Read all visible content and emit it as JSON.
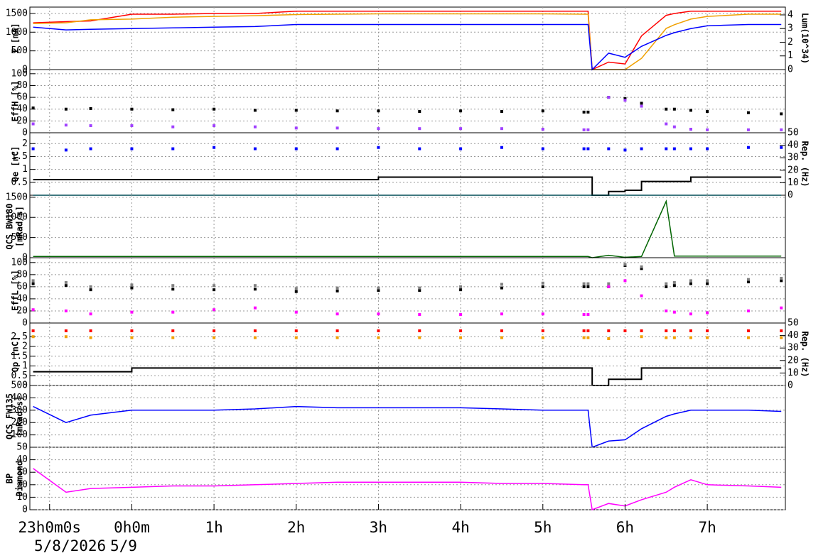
{
  "chart_data": [
    {
      "type": "line",
      "ylabel": [
        "I [mA]"
      ],
      "y2label": "Lum(10^34)",
      "xlim": [
        -1.24,
        7.95
      ],
      "ylim": [
        0,
        1670
      ],
      "yticks": [
        0,
        500,
        1000,
        1500
      ],
      "y2lim": [
        0,
        4.57
      ],
      "y2ticks": [
        0,
        1,
        2,
        3,
        4
      ],
      "grid": true,
      "x": [
        -1.2,
        -0.8,
        -0.5,
        0,
        0.5,
        1,
        1.5,
        2,
        2.5,
        3,
        3.5,
        4,
        4.5,
        5,
        5.5,
        5.55,
        5.6,
        5.8,
        6,
        6.2,
        6.5,
        6.6,
        6.8,
        7,
        7.5,
        7.9
      ],
      "series": [
        {
          "color": "#ff0000",
          "mode": "line",
          "values": [
            1250,
            1280,
            1300,
            1480,
            1480,
            1500,
            1500,
            1560,
            1560,
            1560,
            1560,
            1560,
            1560,
            1560,
            1560,
            1560,
            0,
            200,
            150,
            900,
            1450,
            1500,
            1560,
            1560,
            1560,
            1560
          ]
        },
        {
          "color": "#f0a000",
          "mode": "line",
          "values": [
            1230,
            1250,
            1330,
            1350,
            1400,
            1420,
            1440,
            1470,
            1480,
            1490,
            1490,
            1490,
            1490,
            1490,
            1480,
            1480,
            0,
            0,
            0,
            300,
            1100,
            1200,
            1350,
            1420,
            1480,
            1480
          ]
        },
        {
          "color": "#0000ff",
          "mode": "line",
          "axis": "y2",
          "values": [
            3.1,
            2.9,
            2.95,
            3.0,
            3.05,
            3.1,
            3.15,
            3.3,
            3.3,
            3.3,
            3.3,
            3.3,
            3.3,
            3.3,
            3.3,
            3.3,
            0,
            1.2,
            0.9,
            1.7,
            2.5,
            2.7,
            3.0,
            3.2,
            3.3,
            3.3
          ]
        }
      ]
    },
    {
      "type": "line",
      "ylabel": [
        "EffH [%]"
      ],
      "xlim": [
        -1.24,
        7.95
      ],
      "ylim": [
        0,
        107
      ],
      "yticks": [
        0,
        20,
        40,
        60,
        80,
        100
      ],
      "grid": true,
      "x": [
        -1.2,
        -0.8,
        -0.5,
        0,
        0.5,
        1,
        1.5,
        2,
        2.5,
        3,
        3.5,
        4,
        4.5,
        5,
        5.5,
        5.55,
        5.6,
        5.8,
        6,
        6.2,
        6.5,
        6.6,
        6.8,
        7,
        7.5,
        7.9
      ],
      "series": [
        {
          "color": "#000000",
          "mode": "markers",
          "values": [
            42,
            40,
            41,
            40,
            39,
            40,
            38,
            38,
            37,
            37,
            36,
            37,
            36,
            37,
            35,
            35,
            null,
            60,
            58,
            50,
            40,
            40,
            38,
            36,
            34,
            32
          ]
        },
        {
          "color": "#a040ff",
          "mode": "markers",
          "values": [
            15,
            13,
            12,
            12,
            10,
            12,
            10,
            8,
            8,
            7,
            7,
            7,
            7,
            6,
            5,
            5,
            null,
            60,
            55,
            45,
            15,
            10,
            6,
            5,
            5,
            5
          ]
        }
      ]
    },
    {
      "type": "line",
      "ylabel": [
        "Qe [nC]"
      ],
      "y2label": "Rep. (Hz)",
      "xlim": [
        -1.24,
        7.95
      ],
      "ylim": [
        0,
        2.42
      ],
      "yticks": [
        0.5,
        1,
        1.5,
        2
      ],
      "y2lim": [
        0,
        50
      ],
      "y2ticks": [
        0,
        10,
        20,
        30,
        40,
        50
      ],
      "grid": true,
      "x": [
        -1.2,
        -0.8,
        -0.5,
        0,
        0.5,
        1,
        1.5,
        2,
        2.5,
        3,
        3.5,
        4,
        4.5,
        5,
        5.5,
        5.55,
        5.6,
        5.8,
        6,
        6.2,
        6.5,
        6.6,
        6.8,
        7,
        7.5,
        7.9
      ],
      "series": [
        {
          "color": "#0000ff",
          "mode": "markers",
          "values": [
            1.8,
            1.75,
            1.8,
            1.8,
            1.8,
            1.85,
            1.8,
            1.8,
            1.8,
            1.85,
            1.8,
            1.8,
            1.85,
            1.8,
            1.8,
            1.8,
            null,
            1.8,
            1.75,
            1.8,
            1.8,
            1.8,
            1.8,
            1.8,
            1.85,
            1.85
          ]
        },
        {
          "color": "#000000",
          "mode": "step",
          "axis": "y2",
          "values": [
            12.5,
            12.5,
            12.5,
            12.5,
            12.5,
            12.5,
            12.5,
            12.5,
            12.5,
            14.5,
            14.5,
            14.5,
            14.5,
            14.5,
            14.5,
            14.5,
            0,
            3,
            4,
            11,
            11,
            11,
            14.5,
            14.5,
            14.5,
            14.5
          ]
        },
        {
          "color": "#00e5ff",
          "mode": "line",
          "axis": "y2",
          "values": [
            0,
            0,
            0,
            0,
            0,
            0,
            0,
            0,
            0,
            0,
            0,
            0,
            0,
            0,
            0,
            0,
            0,
            0,
            0,
            0,
            0,
            0,
            0,
            0,
            0,
            0
          ]
        }
      ]
    },
    {
      "type": "line",
      "ylabel": [
        "QCS BW180",
        "[mRad/s]"
      ],
      "xlim": [
        -1.24,
        7.95
      ],
      "ylim": [
        0,
        1550
      ],
      "yticks": [
        0,
        500,
        1000,
        1500
      ],
      "grid": true,
      "x": [
        -1.2,
        -0.8,
        -0.5,
        0,
        0.5,
        1,
        1.5,
        2,
        2.5,
        3,
        3.5,
        4,
        4.5,
        5,
        5.5,
        5.55,
        5.6,
        5.8,
        6,
        6.2,
        6.5,
        6.6,
        6.8,
        7,
        7.5,
        7.9
      ],
      "series": [
        {
          "color": "#006400",
          "mode": "line",
          "values": [
            30,
            30,
            30,
            30,
            30,
            30,
            30,
            30,
            30,
            30,
            30,
            30,
            30,
            30,
            30,
            30,
            0,
            60,
            10,
            30,
            1400,
            40,
            40,
            40,
            40,
            40
          ]
        }
      ]
    },
    {
      "type": "line",
      "ylabel": [
        "EffL [%]"
      ],
      "xlim": [
        -1.24,
        7.95
      ],
      "ylim": [
        0,
        108
      ],
      "yticks": [
        0,
        20,
        40,
        60,
        80,
        100
      ],
      "grid": true,
      "x": [
        -1.2,
        -0.8,
        -0.5,
        0,
        0.5,
        1,
        1.5,
        2,
        2.5,
        3,
        3.5,
        4,
        4.5,
        5,
        5.5,
        5.55,
        5.6,
        5.8,
        6,
        6.2,
        6.5,
        6.6,
        6.8,
        7,
        7.5,
        7.9
      ],
      "series": [
        {
          "color": "#000000",
          "mode": "markers",
          "values": [
            65,
            62,
            55,
            58,
            56,
            55,
            56,
            52,
            53,
            54,
            54,
            55,
            58,
            60,
            60,
            60,
            null,
            60,
            95,
            90,
            60,
            62,
            65,
            65,
            68,
            70
          ]
        },
        {
          "color": "#808080",
          "mode": "markers",
          "values": [
            70,
            67,
            60,
            63,
            62,
            62,
            62,
            57,
            58,
            58,
            58,
            60,
            64,
            66,
            65,
            65,
            null,
            65,
            97,
            93,
            65,
            67,
            70,
            70,
            72,
            74
          ]
        },
        {
          "color": "#ff00ff",
          "mode": "markers",
          "values": [
            22,
            20,
            15,
            18,
            18,
            22,
            25,
            18,
            15,
            15,
            14,
            14,
            15,
            15,
            14,
            14,
            null,
            60,
            70,
            45,
            20,
            18,
            15,
            17,
            20,
            25
          ]
        }
      ]
    },
    {
      "type": "line",
      "ylabel": [
        "Qp [nC]"
      ],
      "y2label": "Rep. (Hz)",
      "xlim": [
        -1.24,
        7.95
      ],
      "ylim": [
        0,
        3.2
      ],
      "yticks": [
        0,
        0.5,
        1,
        1.5,
        2,
        2.5
      ],
      "y2lim": [
        0,
        50
      ],
      "y2ticks": [
        0,
        10,
        20,
        30,
        40,
        50
      ],
      "grid": true,
      "x": [
        -1.2,
        -0.8,
        -0.5,
        0,
        0.5,
        1,
        1.5,
        2,
        2.5,
        3,
        3.5,
        4,
        4.5,
        5,
        5.5,
        5.55,
        5.6,
        5.8,
        6,
        6.2,
        6.5,
        6.6,
        6.8,
        7,
        7.5,
        7.9
      ],
      "series": [
        {
          "color": "#ff0000",
          "mode": "markers",
          "values": [
            2.8,
            2.8,
            2.8,
            2.8,
            2.8,
            2.8,
            2.8,
            2.8,
            2.8,
            2.8,
            2.8,
            2.8,
            2.8,
            2.8,
            2.8,
            2.8,
            null,
            2.8,
            2.8,
            2.8,
            2.8,
            2.8,
            2.8,
            2.8,
            2.8,
            2.8
          ]
        },
        {
          "color": "#f0a000",
          "mode": "markers",
          "values": [
            2.5,
            2.5,
            2.45,
            2.45,
            2.45,
            2.45,
            2.45,
            2.45,
            2.45,
            2.45,
            2.45,
            2.45,
            2.45,
            2.45,
            2.45,
            2.45,
            null,
            2.4,
            null,
            2.5,
            2.45,
            2.45,
            2.45,
            2.45,
            2.45,
            2.45
          ]
        },
        {
          "color": "#000000",
          "mode": "step",
          "axis": "y2",
          "values": [
            11,
            11,
            11,
            14,
            14,
            14,
            14,
            14,
            14,
            14,
            14,
            14,
            14,
            14,
            14,
            14,
            0,
            5,
            5,
            14,
            14,
            14,
            14,
            14,
            14,
            14
          ]
        }
      ]
    },
    {
      "type": "line",
      "ylabel": [
        "QCS FW135",
        "[mRad/s]"
      ],
      "xlim": [
        -1.24,
        7.95
      ],
      "ylim": [
        0,
        500
      ],
      "yticks": [
        100,
        200,
        300,
        400,
        500
      ],
      "grid": true,
      "x": [
        -1.2,
        -0.8,
        -0.5,
        0,
        0.5,
        1,
        1.5,
        2,
        2.5,
        3,
        3.5,
        4,
        4.5,
        5,
        5.5,
        5.55,
        5.6,
        5.8,
        6,
        6.2,
        6.5,
        6.6,
        6.8,
        7,
        7.5,
        7.9
      ],
      "series": [
        {
          "color": "#0000ff",
          "mode": "line",
          "values": [
            330,
            200,
            260,
            300,
            300,
            300,
            310,
            330,
            320,
            320,
            320,
            320,
            310,
            300,
            300,
            300,
            0,
            50,
            60,
            150,
            250,
            270,
            300,
            300,
            300,
            290
          ]
        }
      ]
    },
    {
      "type": "line",
      "ylabel": [
        "BP",
        "Diamond"
      ],
      "xlim": [
        -1.24,
        7.95
      ],
      "ylim": [
        0,
        50
      ],
      "yticks": [
        0,
        10,
        20,
        30,
        40,
        50
      ],
      "grid": true,
      "x": [
        -1.2,
        -0.8,
        -0.5,
        0,
        0.5,
        1,
        1.5,
        2,
        2.5,
        3,
        3.5,
        4,
        4.5,
        5,
        5.5,
        5.55,
        5.6,
        5.8,
        6,
        6.2,
        6.5,
        6.6,
        6.8,
        7,
        7.5,
        7.9
      ],
      "series": [
        {
          "color": "#ff00ff",
          "mode": "line",
          "values": [
            33,
            14,
            17,
            18,
            19,
            19,
            20,
            21,
            22,
            22,
            22,
            22,
            21,
            21,
            20,
            20,
            0,
            5,
            3,
            8,
            14,
            18,
            24,
            20,
            19,
            18
          ]
        }
      ],
      "xticks": [
        {
          "value": -1,
          "label": "23h0m0s"
        },
        {
          "value": 0,
          "label": "0h0m"
        },
        {
          "value": 1,
          "label": "1h"
        },
        {
          "value": 2,
          "label": "2h"
        },
        {
          "value": 3,
          "label": "3h"
        },
        {
          "value": 4,
          "label": "4h"
        },
        {
          "value": 5,
          "label": "5h"
        },
        {
          "value": 6,
          "label": "6h"
        },
        {
          "value": 7,
          "label": "7h"
        }
      ],
      "dates": [
        "5/8/2026",
        "5/9"
      ]
    }
  ]
}
